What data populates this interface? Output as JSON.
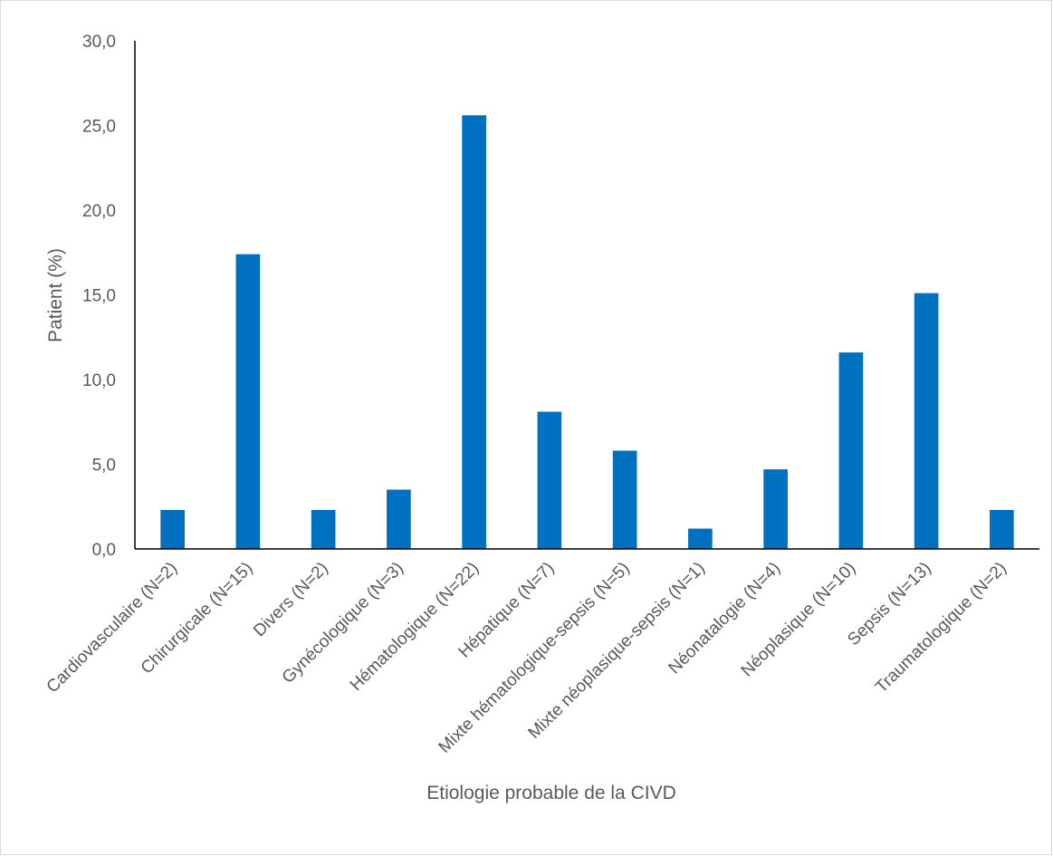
{
  "chart_data": {
    "type": "bar",
    "title": "",
    "xlabel": "Etiologie probable de la CIVD",
    "ylabel": "Patient (%)",
    "ylim": [
      0,
      30
    ],
    "yticks": [
      "0,0",
      "5,0",
      "10,0",
      "15,0",
      "20,0",
      "25,0",
      "30,0"
    ],
    "ytick_values": [
      0,
      5,
      10,
      15,
      20,
      25,
      30
    ],
    "categories": [
      "Cardiovasculaire (N=2)",
      "Chirurgicale (N=15)",
      "Divers (N=2)",
      "Gynécologique  (N=3)",
      "Hématologique  (N=22)",
      "Hépatique (N=7)",
      "Mixte hématologique-sepsis (N=5)",
      "Mixte néoplasique-sepsis (N=1)",
      "Néonatalogie (N=4)",
      "Néoplasique (N=10)",
      "Sepsis (N=13)",
      "Traumatologique (N=2)"
    ],
    "values": [
      2.3,
      17.4,
      2.3,
      3.5,
      25.6,
      8.1,
      5.8,
      1.2,
      4.7,
      11.6,
      15.1,
      2.3
    ],
    "bar_color": "#0070C0",
    "grid": false,
    "legend": "none"
  }
}
